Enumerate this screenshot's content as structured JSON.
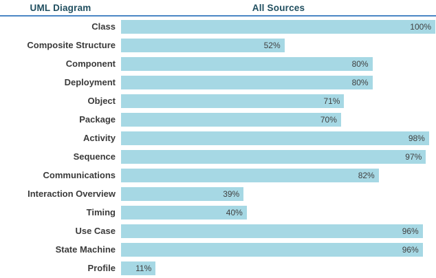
{
  "header": {
    "category_column_title": "UML Diagram",
    "value_column_title": "All Sources"
  },
  "colors": {
    "background": "#FFFFFF",
    "bar": "#A6D8E4",
    "header_text": "#1F4E5F",
    "divider": "#4A86C4",
    "category_label": "#3A3A3A",
    "value_label": "#404040"
  },
  "chart_data": {
    "type": "bar",
    "orientation": "horizontal",
    "title": "All Sources",
    "category_axis_label": "UML Diagram",
    "unit": "%",
    "xlim": [
      0,
      100
    ],
    "grid": false,
    "legend": false,
    "value_label_position": "inside-end",
    "categories": [
      "Class",
      "Composite Structure",
      "Component",
      "Deployment",
      "Object",
      "Package",
      "Activity",
      "Sequence",
      "Communications",
      "Interaction Overview",
      "Timing",
      "Use Case",
      "State Machine",
      "Profile"
    ],
    "values": [
      100,
      52,
      80,
      80,
      71,
      70,
      98,
      97,
      82,
      39,
      40,
      96,
      96,
      11
    ],
    "value_labels": [
      "100%",
      "52%",
      "80%",
      "80%",
      "71%",
      "70%",
      "98%",
      "97%",
      "82%",
      "39%",
      "40%",
      "96%",
      "96%",
      "11%"
    ]
  }
}
